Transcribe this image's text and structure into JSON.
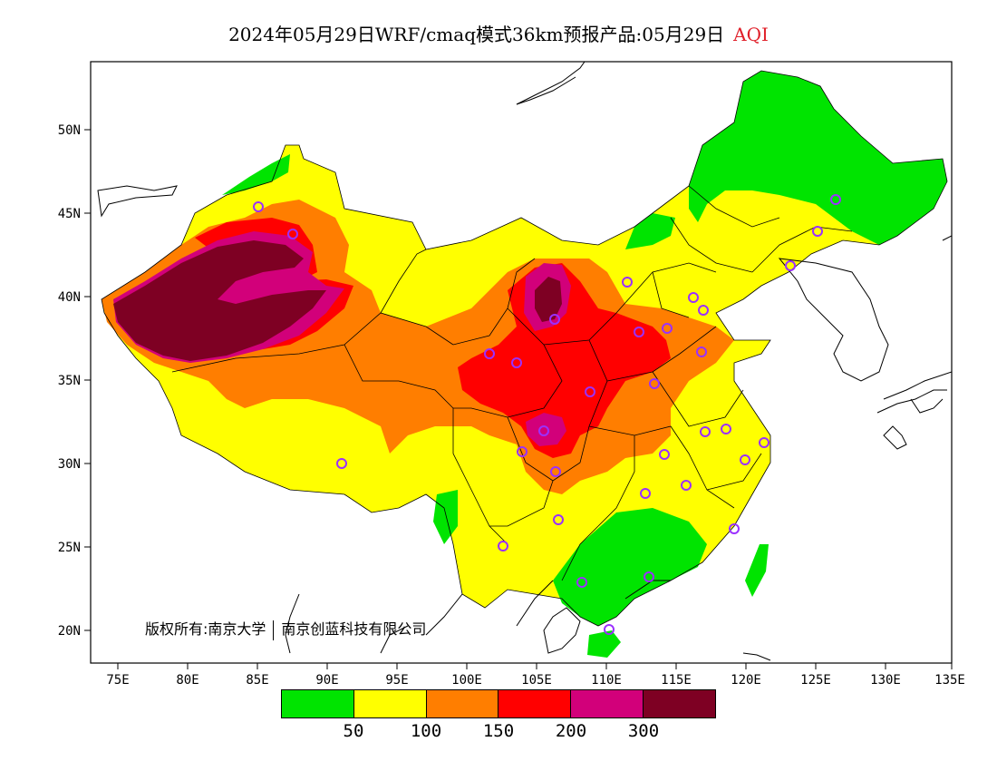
{
  "title": {
    "main": "2024年05月29日WRF/cmaq模式36km预报产品:05月29日",
    "variable": "AQI",
    "variable_color": "#e0202a"
  },
  "axes": {
    "lat_labels": [
      "50N",
      "45N",
      "40N",
      "35N",
      "30N",
      "25N",
      "20N"
    ],
    "lon_labels": [
      "75E",
      "80E",
      "85E",
      "90E",
      "95E",
      "100E",
      "105E",
      "110E",
      "115E",
      "120E",
      "125E",
      "130E",
      "135E"
    ]
  },
  "copyright": {
    "part1": "版权所有:南京大学",
    "part2": "南京创蓝科技有限公司"
  },
  "legend": {
    "colors": [
      "#00e400",
      "#ffff00",
      "#ff7e00",
      "#ff0000",
      "#d2007a",
      "#7e0023"
    ],
    "labels": [
      "50",
      "100",
      "150",
      "200",
      "300"
    ]
  },
  "palette": {
    "good": "#00e400",
    "moderate": "#ffff00",
    "sensitive": "#ff7e00",
    "unhealthy": "#ff0000",
    "very_unhealthy": "#d2007a",
    "hazardous": "#7e0023",
    "station_marker": "#9b30ff"
  }
}
